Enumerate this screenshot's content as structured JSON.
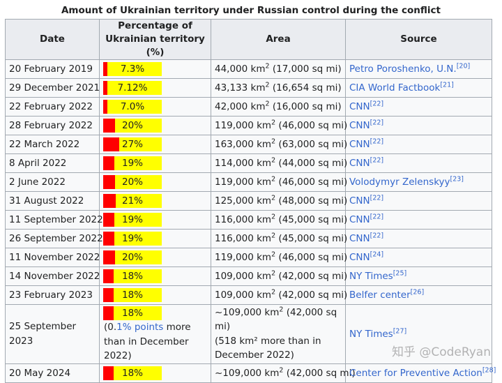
{
  "caption": "Amount of Ukrainian territory under Russian control during the conflict",
  "headers": {
    "date": "Date",
    "percentage": "Percentage of Ukrainian territory (%)",
    "area": "Area",
    "source": "Source"
  },
  "bar_colors": {
    "fill": "#ff0000",
    "background": "#ffff00"
  },
  "rows": [
    {
      "date": "20 February 2019",
      "pct": "7.3%",
      "pct_value": 7.3,
      "area_km": "44,000 km",
      "area_mi": " (17,000 sq mi)",
      "source": "Petro Poroshenko, U.N.",
      "ref": "[20]"
    },
    {
      "date": "29 December 2021",
      "pct": "7.12%",
      "pct_value": 7.12,
      "area_km": "43,133 km",
      "area_mi": " (16,654 sq mi)",
      "source": "CIA World Factbook",
      "ref": "[21]"
    },
    {
      "date": "22 February 2022",
      "pct": "7.0%",
      "pct_value": 7.0,
      "area_km": "42,000 km",
      "area_mi": " (16,000 sq mi)",
      "source": "CNN",
      "ref": "[22]"
    },
    {
      "date": "28 February 2022",
      "pct": "20%",
      "pct_value": 20,
      "area_km": "119,000 km",
      "area_mi": " (46,000 sq mi)",
      "source": "CNN",
      "ref": "[22]"
    },
    {
      "date": "22 March 2022",
      "pct": "27%",
      "pct_value": 27,
      "area_km": "163,000 km",
      "area_mi": " (63,000 sq mi)",
      "source": "CNN",
      "ref": "[22]"
    },
    {
      "date": "8 April 2022",
      "pct": "19%",
      "pct_value": 19,
      "area_km": "114,000 km",
      "area_mi": " (44,000 sq mi)",
      "source": "CNN",
      "ref": "[22]"
    },
    {
      "date": "2 June 2022",
      "pct": "20%",
      "pct_value": 20,
      "area_km": "119,000 km",
      "area_mi": " (46,000 sq mi)",
      "source": "Volodymyr Zelenskyy",
      "ref": "[23]"
    },
    {
      "date": "31 August 2022",
      "pct": "21%",
      "pct_value": 21,
      "area_km": "125,000 km",
      "area_mi": " (48,000 sq mi)",
      "source": "CNN",
      "ref": "[22]"
    },
    {
      "date": "11 September 2022",
      "pct": "19%",
      "pct_value": 19,
      "area_km": "116,000 km",
      "area_mi": " (45,000 sq mi)",
      "source": "CNN",
      "ref": "[22]"
    },
    {
      "date": "26 September 2022",
      "pct": "19%",
      "pct_value": 19,
      "area_km": "116,000 km",
      "area_mi": " (45,000 sq mi)",
      "source": "CNN",
      "ref": "[22]"
    },
    {
      "date": "11 November 2022",
      "pct": "20%",
      "pct_value": 20,
      "area_km": "119,000 km",
      "area_mi": " (46,000 sq mi)",
      "source": "CNN",
      "ref": "[24]"
    },
    {
      "date": "14 November 2022",
      "pct": "18%",
      "pct_value": 18,
      "area_km": "109,000 km",
      "area_mi": " (42,000 sq mi)",
      "source": "NY Times",
      "ref": "[25]"
    },
    {
      "date": "23 February 2023",
      "pct": "18%",
      "pct_value": 18,
      "area_km": "109,000 km",
      "area_mi": " (42,000 sq mi)",
      "source": "Belfer center",
      "ref": "[26]"
    },
    {
      "date": "25 September 2023",
      "pct": "18%",
      "pct_value": 18,
      "area_km": "~109,000 km",
      "area_mi": " (42,000 sq mi)",
      "pct_note_pre": "(0.",
      "pct_note_link": "1% points",
      "pct_note_post": " more than in December 2022)",
      "area_note": "(518 km² more than in December 2022)",
      "source": "NY Times",
      "ref": "[27]"
    },
    {
      "date": "20 May 2024",
      "pct": "18%",
      "pct_value": 18,
      "area_km": "~109,000 km",
      "area_mi": " (42,000 sq mi)",
      "source": "Center for Preventive Action",
      "ref": "[28]"
    }
  ],
  "watermark": "知乎 @CodeRyan"
}
